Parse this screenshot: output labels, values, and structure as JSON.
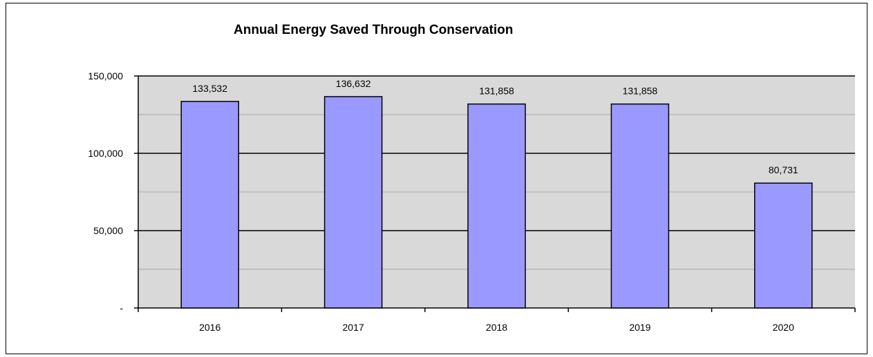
{
  "chart_data": {
    "type": "bar",
    "title": "Annual Energy Saved Through Conservation",
    "xlabel": "",
    "ylabel": "",
    "categories": [
      "2016",
      "2017",
      "2018",
      "2019",
      "2020"
    ],
    "values": [
      133532,
      136632,
      131858,
      131858,
      80731
    ],
    "data_labels": [
      "133,532",
      "136,632",
      "131,858",
      "131,858",
      "80,731"
    ],
    "ylim": [
      0,
      150000
    ],
    "yticks": [
      0,
      50000,
      100000,
      150000
    ],
    "ytick_labels": [
      "-",
      "50,000",
      "100,000",
      "150,000"
    ],
    "grid": true,
    "legend": "none",
    "colors": {
      "bar_fill": "#9999ff",
      "bar_stroke": "#000000",
      "plot_background": "#d9d9d9",
      "gridline": "#000000",
      "minor_gridline": "#a6a6a6"
    }
  }
}
